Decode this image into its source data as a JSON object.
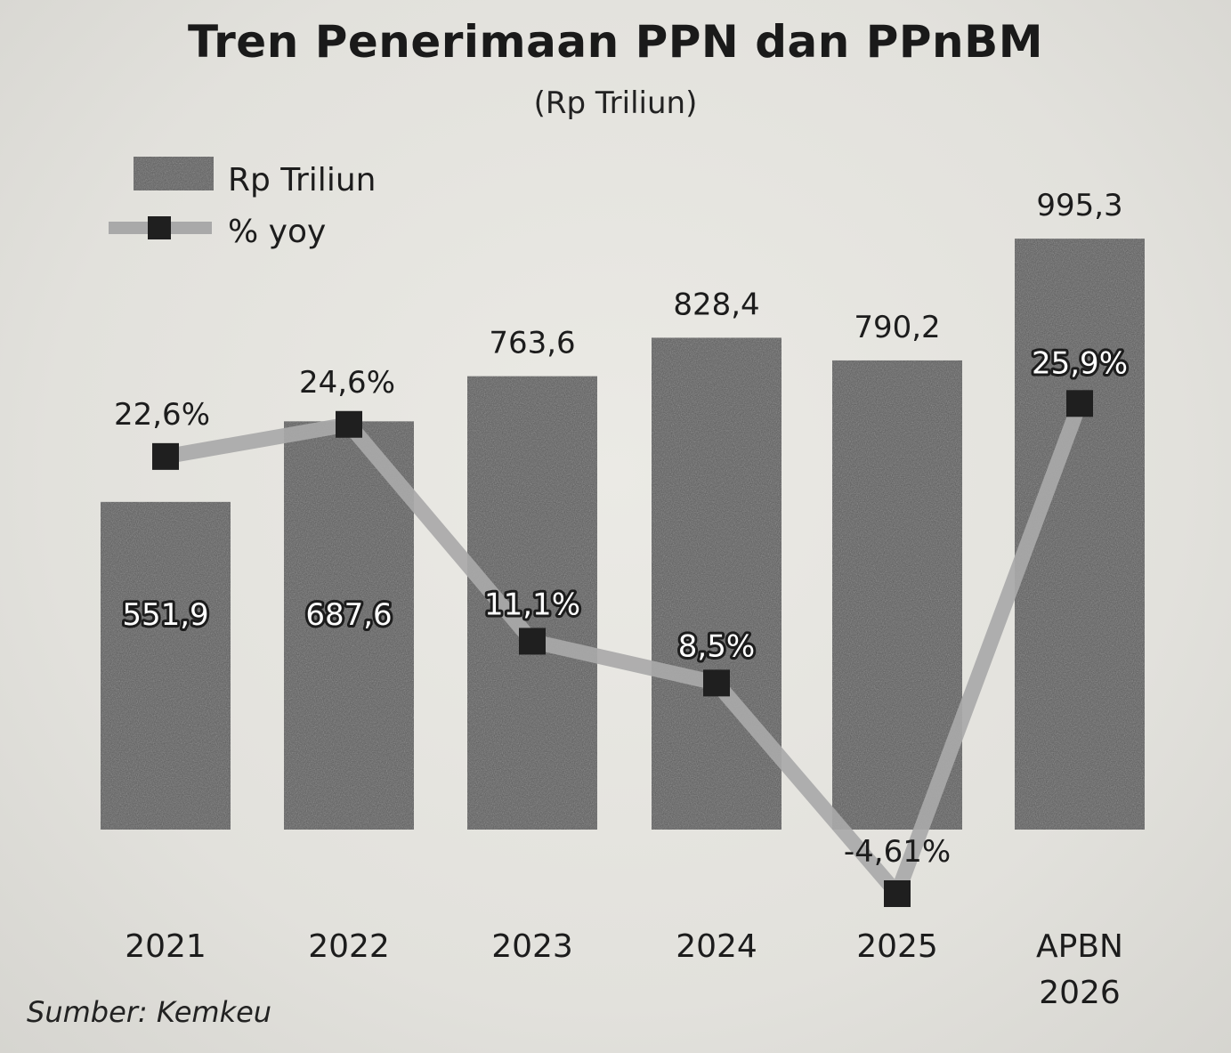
{
  "title": "Tren Penerimaan PPN dan PPnBM",
  "subtitle": "(Rp Triliun)",
  "source": "Sumber: Kemkeu",
  "colors": {
    "bar": "#5c5c5c",
    "line": "#a9a9a9",
    "marker": "#1f1f1f",
    "background": "#e6e5e0"
  },
  "chart_data": {
    "type": "bar",
    "categories": [
      "2021",
      "2022",
      "2023",
      "2024",
      "2025",
      "APBN 2026"
    ],
    "category_labels": [
      [
        "2021"
      ],
      [
        "2022"
      ],
      [
        "2023"
      ],
      [
        "2024"
      ],
      [
        "2025"
      ],
      [
        "APBN",
        "2026"
      ]
    ],
    "legend": {
      "position": "top-left",
      "entries": [
        "Rp Triliun",
        "% yoy"
      ]
    },
    "series": [
      {
        "name": "Rp Triliun",
        "type": "bar",
        "values": [
          551.9,
          687.6,
          763.6,
          828.4,
          790.2,
          995.3
        ],
        "labels": [
          "551,9",
          "687,6",
          "763,6",
          "828,4",
          "790,2",
          "995,3"
        ]
      },
      {
        "name": "% yoy",
        "type": "line",
        "values": [
          22.6,
          24.6,
          11.1,
          8.5,
          -4.61,
          25.9
        ],
        "labels": [
          "22,6%",
          "24,6%",
          "11,1%",
          "8,5%",
          "-4,61%",
          "25,9%"
        ]
      }
    ],
    "grid": false
  }
}
